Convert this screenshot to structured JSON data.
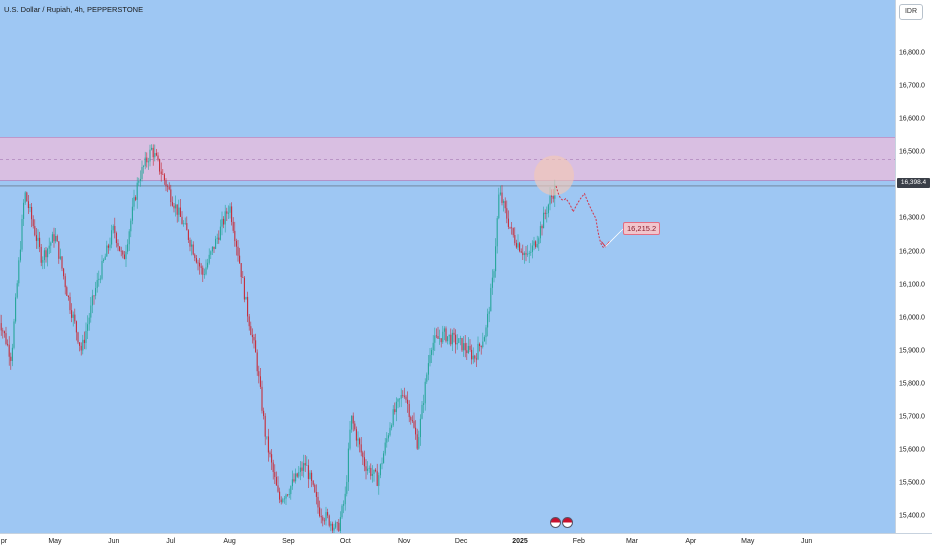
{
  "header": {
    "title": "U.S. Dollar / Rupiah, 4h, PEPPERSTONE",
    "currency": "IDR",
    "current_price": "16,398.4",
    "target_label": "16,215.2"
  },
  "colors": {
    "background": "#9ec7f3",
    "zone": "#dcbfe0",
    "up_candle": "#26a69a",
    "down_candle": "#c62d3a",
    "projection": "#d43449"
  },
  "chart_data": {
    "type": "candlestick",
    "ylim": [
      15350,
      16960
    ],
    "y_ticks": [
      "16,800.0",
      "16,700.0",
      "16,600.0",
      "16,500.0",
      "16,400.0",
      "16,300.0",
      "16,200.0",
      "16,100.0",
      "16,000.0",
      "15,900.0",
      "15,800.0",
      "15,700.0",
      "15,600.0",
      "15,500.0",
      "15,400.0"
    ],
    "y_tick_values": [
      16800,
      16700,
      16600,
      16500,
      16400,
      16300,
      16200,
      16100,
      16000,
      15900,
      15800,
      15700,
      15600,
      15500,
      15400
    ],
    "x_ticks": [
      "pr",
      "May",
      "Jun",
      "Jul",
      "Aug",
      "Sep",
      "Oct",
      "Nov",
      "Dec",
      "2025",
      "Feb",
      "Mar",
      "Apr",
      "May",
      "Jun"
    ],
    "x_tick_dates": [
      "2024-04-01",
      "2024-05-01",
      "2024-06-01",
      "2024-07-01",
      "2024-08-01",
      "2024-09-01",
      "2024-10-01",
      "2024-11-01",
      "2024-12-01",
      "2025-01-01",
      "2025-02-01",
      "2025-03-01",
      "2025-04-01",
      "2025-05-01",
      "2025-06-01"
    ],
    "x_tick_bold": [
      false,
      false,
      false,
      false,
      false,
      false,
      false,
      false,
      false,
      true,
      false,
      false,
      false,
      false,
      false
    ],
    "price_path": [
      [
        "2024-04-01",
        16010
      ],
      [
        "2024-04-08",
        15880
      ],
      [
        "2024-04-15",
        16380
      ],
      [
        "2024-04-24",
        16180
      ],
      [
        "2024-05-01",
        16250
      ],
      [
        "2024-05-08",
        16060
      ],
      [
        "2024-05-15",
        15900
      ],
      [
        "2024-05-22",
        16080
      ],
      [
        "2024-06-01",
        16270
      ],
      [
        "2024-06-06",
        16170
      ],
      [
        "2024-06-14",
        16420
      ],
      [
        "2024-06-21",
        16510
      ],
      [
        "2024-07-01",
        16370
      ],
      [
        "2024-07-10",
        16250
      ],
      [
        "2024-07-18",
        16130
      ],
      [
        "2024-07-24",
        16220
      ],
      [
        "2024-08-01",
        16340
      ],
      [
        "2024-08-06",
        16180
      ],
      [
        "2024-08-10",
        16030
      ],
      [
        "2024-08-15",
        15880
      ],
      [
        "2024-08-20",
        15640
      ],
      [
        "2024-08-27",
        15450
      ],
      [
        "2024-09-01",
        15480
      ],
      [
        "2024-09-10",
        15560
      ],
      [
        "2024-09-17",
        15420
      ],
      [
        "2024-09-27",
        15360
      ],
      [
        "2024-10-01",
        15460
      ],
      [
        "2024-10-04",
        15700
      ],
      [
        "2024-10-11",
        15560
      ],
      [
        "2024-10-18",
        15510
      ],
      [
        "2024-10-25",
        15690
      ],
      [
        "2024-11-01",
        15780
      ],
      [
        "2024-11-08",
        15620
      ],
      [
        "2024-11-15",
        15920
      ],
      [
        "2024-11-22",
        15950
      ],
      [
        "2024-12-01",
        15920
      ],
      [
        "2024-12-08",
        15880
      ],
      [
        "2024-12-14",
        15960
      ],
      [
        "2024-12-18",
        16130
      ],
      [
        "2024-12-21",
        16380
      ],
      [
        "2024-12-28",
        16250
      ],
      [
        "2025-01-05",
        16180
      ],
      [
        "2025-01-10",
        16240
      ],
      [
        "2025-01-14",
        16310
      ],
      [
        "2025-01-17",
        16360
      ],
      [
        "2025-01-20",
        16398.4
      ]
    ],
    "resistance_zone": [
      16415,
      16545
    ],
    "zone_midline": 16478,
    "current_price_line": 16398.4,
    "projection_path": [
      [
        "2025-01-20",
        16398.4
      ],
      [
        "2025-01-25",
        16360
      ],
      [
        "2025-01-29",
        16320
      ],
      [
        "2025-02-04",
        16375
      ],
      [
        "2025-02-10",
        16300
      ],
      [
        "2025-02-15",
        16215.2
      ]
    ],
    "projection_target": 16215.2
  }
}
